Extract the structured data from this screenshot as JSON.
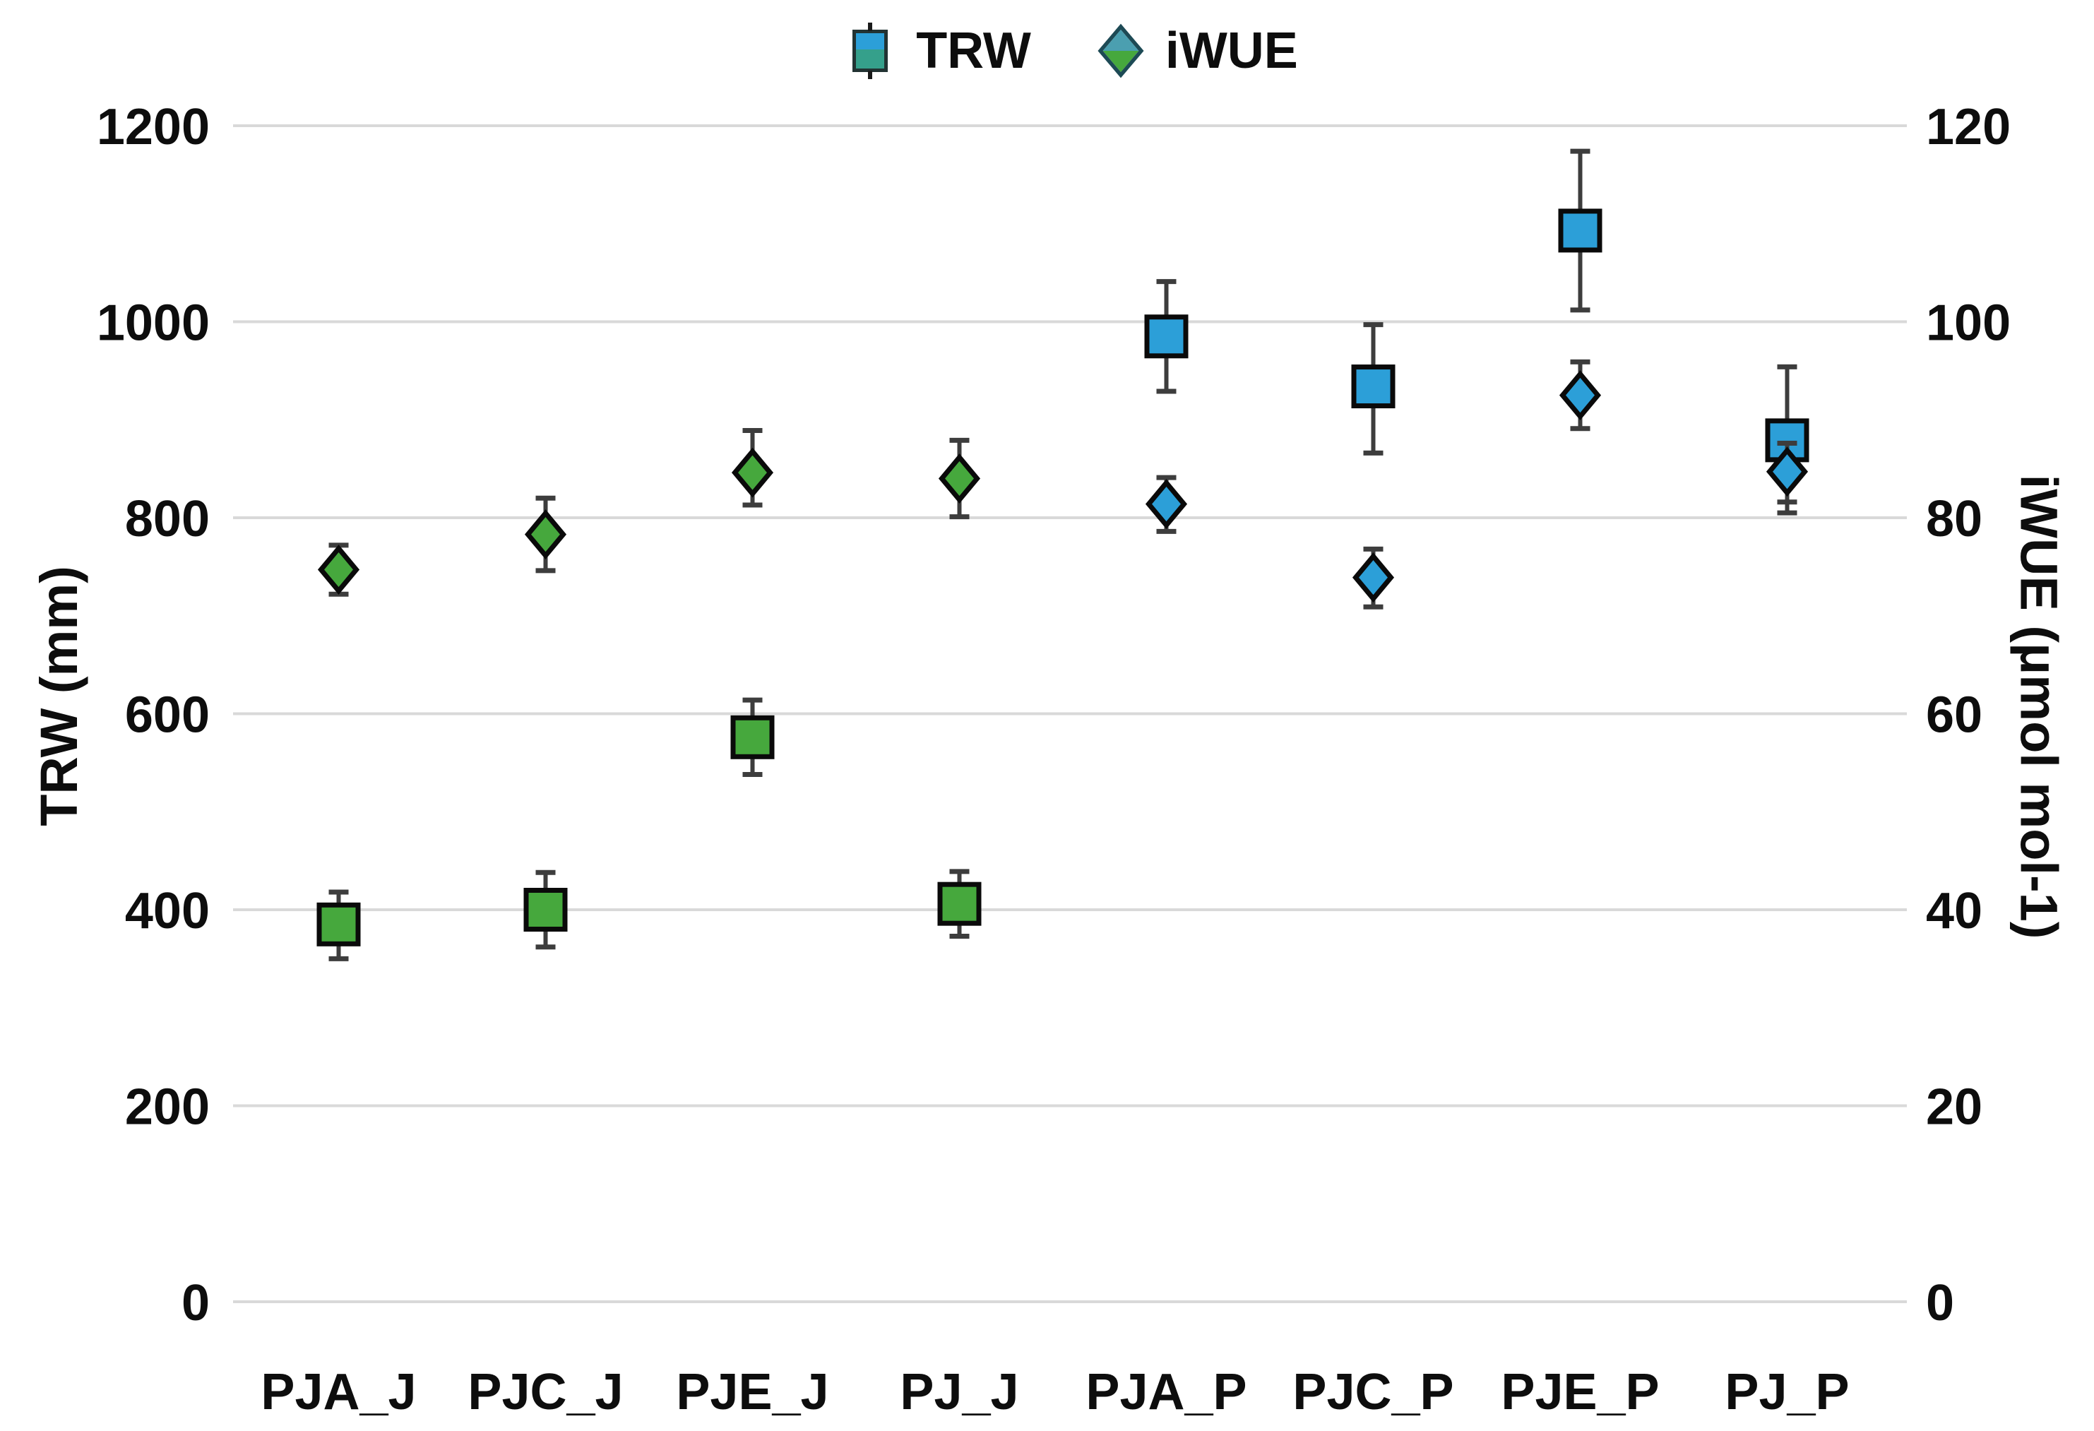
{
  "legend": {
    "items": [
      {
        "label": "TRW",
        "marker": "square"
      },
      {
        "label": "iWUE",
        "marker": "diamond"
      }
    ]
  },
  "axes": {
    "left": {
      "title": "TRW (mm)",
      "ticks": [
        0,
        200,
        400,
        600,
        800,
        1000,
        1200
      ],
      "range": [
        0,
        1200
      ]
    },
    "right": {
      "title": "iWUE (μmol mol-1)",
      "ticks": [
        0,
        20,
        40,
        60,
        80,
        100,
        120
      ],
      "range": [
        0,
        120
      ]
    }
  },
  "chart_data": {
    "type": "scatter",
    "title": "",
    "categories": [
      "PJA_J",
      "PJC_J",
      "PJE_J",
      "PJ_J",
      "PJA_P",
      "PJC_P",
      "PJE_P",
      "PJ_P"
    ],
    "category_groups": [
      "J",
      "J",
      "J",
      "J",
      "P",
      "P",
      "P",
      "P"
    ],
    "xlabel": "",
    "ylabel_left": "TRW (mm)",
    "ylabel_right": "iWUE (μmol mol-1)",
    "ylim_left": [
      0,
      1200
    ],
    "ylim_right": [
      0,
      120
    ],
    "grid": true,
    "legend_position": "top-center",
    "series": [
      {
        "name": "TRW",
        "axis": "left",
        "marker": "square",
        "units": "mm",
        "values": [
          385,
          400,
          576,
          406,
          985,
          934,
          1093,
          879
        ],
        "error_low": [
          350,
          362,
          538,
          373,
          929,
          866,
          1012,
          805
        ],
        "error_high": [
          418,
          438,
          614,
          439,
          1041,
          997,
          1174,
          954
        ]
      },
      {
        "name": "iWUE",
        "axis": "right",
        "marker": "diamond",
        "units": "μmol mol-1",
        "values": [
          74.7,
          78.3,
          84.6,
          84.0,
          81.4,
          73.9,
          92.5,
          84.7
        ],
        "error_low": [
          72.2,
          74.6,
          81.3,
          80.1,
          78.6,
          70.9,
          89.1,
          81.6
        ],
        "error_high": [
          77.2,
          82.0,
          88.9,
          87.9,
          84.1,
          76.8,
          95.9,
          87.6
        ]
      }
    ]
  },
  "colors": {
    "green_marker": "#46A83D",
    "blue_marker": "#2C9FD8",
    "green_category_label": "#3BA848",
    "blue_category_label": "#20608C",
    "marker_stroke": "#0A0A0A",
    "error_bar": "#3D3D3D",
    "gridline": "#D9D9D9",
    "tick_text": "#0D0D0D",
    "legend_square_top": "#2C9FD8",
    "legend_square_bottom": "#35A08B",
    "legend_diamond_top": "#4B9FB0",
    "legend_diamond_bottom": "#46A83D"
  }
}
